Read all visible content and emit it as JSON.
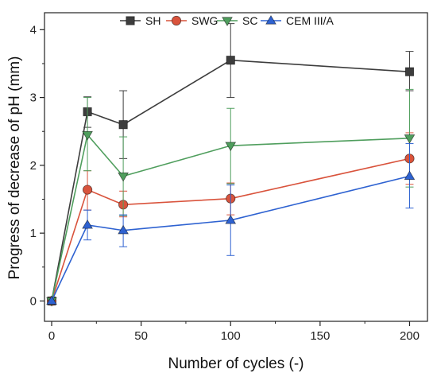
{
  "chart_data": {
    "type": "line",
    "x": [
      0,
      20,
      40,
      100,
      200
    ],
    "xlabel": "Number of cycles (-)",
    "ylabel": "Progress of decrease of pH (mm)",
    "xlim": [
      -4,
      210
    ],
    "ylim": [
      -0.3,
      4.25
    ],
    "xticks": [
      0,
      50,
      100,
      150,
      200
    ],
    "yticks": [
      0,
      1,
      2,
      3,
      4
    ],
    "legend_position": "top",
    "series": [
      {
        "name": "SH",
        "color": "#3d3d3d",
        "marker": "square",
        "values": [
          0,
          2.79,
          2.6,
          3.55,
          3.38
        ],
        "err_low": [
          0,
          2.56,
          2.1,
          3.0,
          3.1
        ],
        "err_high": [
          0,
          3.01,
          3.1,
          4.09,
          3.68
        ]
      },
      {
        "name": "SWG",
        "color": "#d9533c",
        "marker": "circle",
        "values": [
          0,
          1.64,
          1.42,
          1.51,
          2.1
        ],
        "err_low": [
          0,
          1.34,
          1.24,
          1.27,
          1.72
        ],
        "err_high": [
          0,
          1.92,
          1.62,
          1.74,
          2.48
        ]
      },
      {
        "name": "SC",
        "color": "#4f9e5d",
        "marker": "triangle-down",
        "values": [
          0,
          2.45,
          1.84,
          2.29,
          2.4
        ],
        "err_low": [
          0,
          1.92,
          1.26,
          1.73,
          1.68
        ],
        "err_high": [
          0,
          3.0,
          2.42,
          2.84,
          3.12
        ]
      },
      {
        "name": "CEM III/A",
        "color": "#2e62d1",
        "marker": "triangle-up",
        "values": [
          0,
          1.12,
          1.04,
          1.19,
          1.84
        ],
        "err_low": [
          0,
          0.9,
          0.8,
          0.67,
          1.37
        ],
        "err_high": [
          0,
          1.34,
          1.27,
          1.71,
          2.32
        ]
      }
    ]
  }
}
